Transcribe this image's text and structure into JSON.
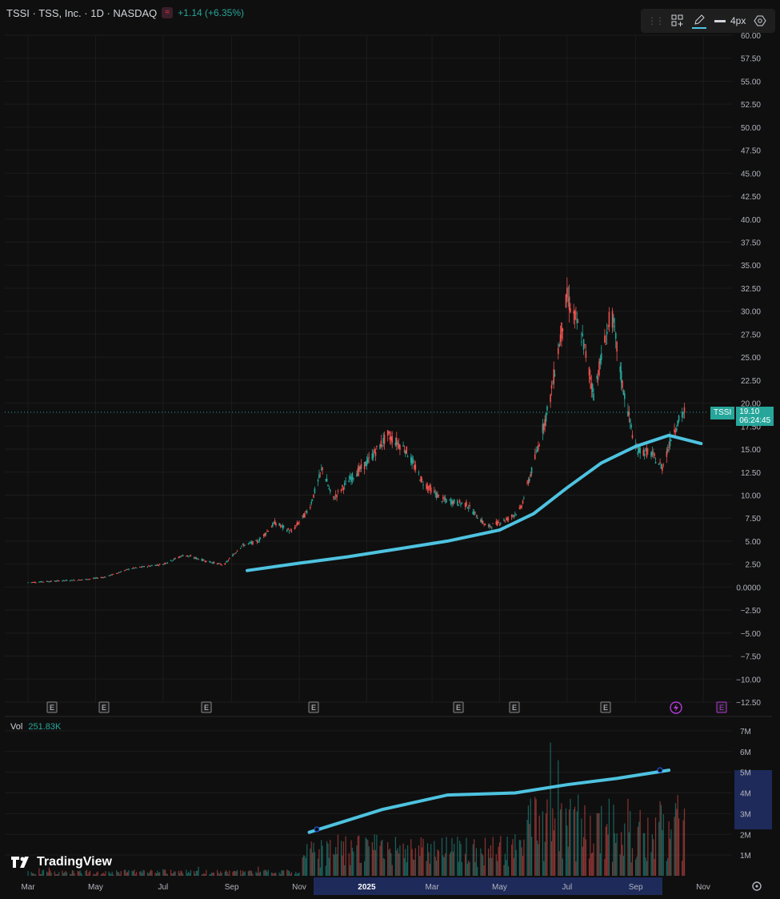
{
  "header": {
    "symbol_line": "TSSI · TSS, Inc. · 1D · NASDAQ",
    "change": "+1.14 (+6.35%)"
  },
  "toolbar": {
    "width_label": "4px",
    "icons": [
      "grip-icon",
      "layout-icon",
      "pencil-icon",
      "line-width-icon",
      "settings-icon"
    ]
  },
  "price_tag": {
    "symbol": "TSSI",
    "price": "19.10",
    "countdown": "06:24:45"
  },
  "volume": {
    "label": "Vol",
    "value": "251.83K"
  },
  "brand": "TradingView",
  "colors": {
    "up": "#26a69a",
    "down": "#ef5350",
    "ma": "#4ec3e0",
    "bg": "#0f0f0f",
    "grid": "#1c1c1c"
  },
  "chart_data": {
    "type": "candlestick",
    "title": "TSSI · TSS, Inc. · 1D · NASDAQ",
    "y_ticks": [
      "60.00",
      "57.50",
      "55.00",
      "52.50",
      "50.00",
      "47.50",
      "45.00",
      "42.50",
      "40.00",
      "37.50",
      "35.00",
      "32.50",
      "30.00",
      "27.50",
      "25.00",
      "22.50",
      "20.00",
      "17.50",
      "15.00",
      "12.50",
      "10.00",
      "7.50",
      "5.00",
      "2.50",
      "0.0000",
      "−2.50",
      "−5.00",
      "−7.50",
      "−10.00",
      "−12.50"
    ],
    "ylim": [
      -12.5,
      60
    ],
    "x_ticks": [
      "Mar",
      "May",
      "Jul",
      "Sep",
      "Nov",
      "2025",
      "Mar",
      "May",
      "Jul",
      "Sep",
      "Nov"
    ],
    "price_path": [
      [
        "2024-03-01",
        0.5
      ],
      [
        "2024-04-01",
        0.7
      ],
      [
        "2024-04-20",
        0.8
      ],
      [
        "2024-05-10",
        1.1
      ],
      [
        "2024-06-01",
        2.0
      ],
      [
        "2024-07-01",
        2.5
      ],
      [
        "2024-07-20",
        3.5
      ],
      [
        "2024-08-10",
        2.8
      ],
      [
        "2024-08-25",
        2.4
      ],
      [
        "2024-09-10",
        4.5
      ],
      [
        "2024-09-25",
        5.0
      ],
      [
        "2024-10-10",
        7.0
      ],
      [
        "2024-10-25",
        6.0
      ],
      [
        "2024-11-10",
        8.5
      ],
      [
        "2024-11-22",
        13.0
      ],
      [
        "2024-12-01",
        9.5
      ],
      [
        "2024-12-15",
        11.5
      ],
      [
        "2025-01-01",
        13.5
      ],
      [
        "2025-01-20",
        16.5
      ],
      [
        "2025-02-05",
        15.0
      ],
      [
        "2025-02-20",
        11.5
      ],
      [
        "2025-03-10",
        9.5
      ],
      [
        "2025-04-01",
        9.0
      ],
      [
        "2025-04-20",
        6.5
      ],
      [
        "2025-05-10",
        7.5
      ],
      [
        "2025-05-20",
        8.5
      ],
      [
        "2025-06-01",
        13.5
      ],
      [
        "2025-06-15",
        20.0
      ],
      [
        "2025-07-01",
        31.5
      ],
      [
        "2025-07-15",
        27.0
      ],
      [
        "2025-07-25",
        21.0
      ],
      [
        "2025-08-10",
        30.0
      ],
      [
        "2025-08-20",
        22.0
      ],
      [
        "2025-09-01",
        15.0
      ],
      [
        "2025-09-15",
        14.5
      ],
      [
        "2025-09-25",
        13.0
      ],
      [
        "2025-10-05",
        17.0
      ],
      [
        "2025-10-15",
        19.1
      ]
    ],
    "moving_average": [
      [
        "2024-09-15",
        1.8
      ],
      [
        "2024-11-01",
        2.6
      ],
      [
        "2024-12-15",
        3.3
      ],
      [
        "2025-02-01",
        4.2
      ],
      [
        "2025-03-15",
        5.0
      ],
      [
        "2025-05-01",
        6.2
      ],
      [
        "2025-06-01",
        8.0
      ],
      [
        "2025-07-01",
        10.8
      ],
      [
        "2025-08-01",
        13.5
      ],
      [
        "2025-09-01",
        15.3
      ],
      [
        "2025-10-01",
        16.5
      ],
      [
        "2025-10-30",
        15.6
      ]
    ],
    "last_price": 19.1,
    "volume": {
      "y_ticks": [
        "7M",
        "6M",
        "5M",
        "4M",
        "3M",
        "2M",
        "1M"
      ],
      "ylim": [
        0,
        7.5
      ],
      "moving_average": [
        [
          "2024-11-10",
          2.1
        ],
        [
          "2025-01-15",
          3.2
        ],
        [
          "2025-03-15",
          3.9
        ],
        [
          "2025-05-15",
          4.0
        ],
        [
          "2025-07-01",
          4.4
        ],
        [
          "2025-08-15",
          4.7
        ],
        [
          "2025-10-01",
          5.1
        ]
      ]
    },
    "events": {
      "earnings_marks": 8,
      "dividend_mark": 1,
      "flash_mark": 1
    }
  }
}
